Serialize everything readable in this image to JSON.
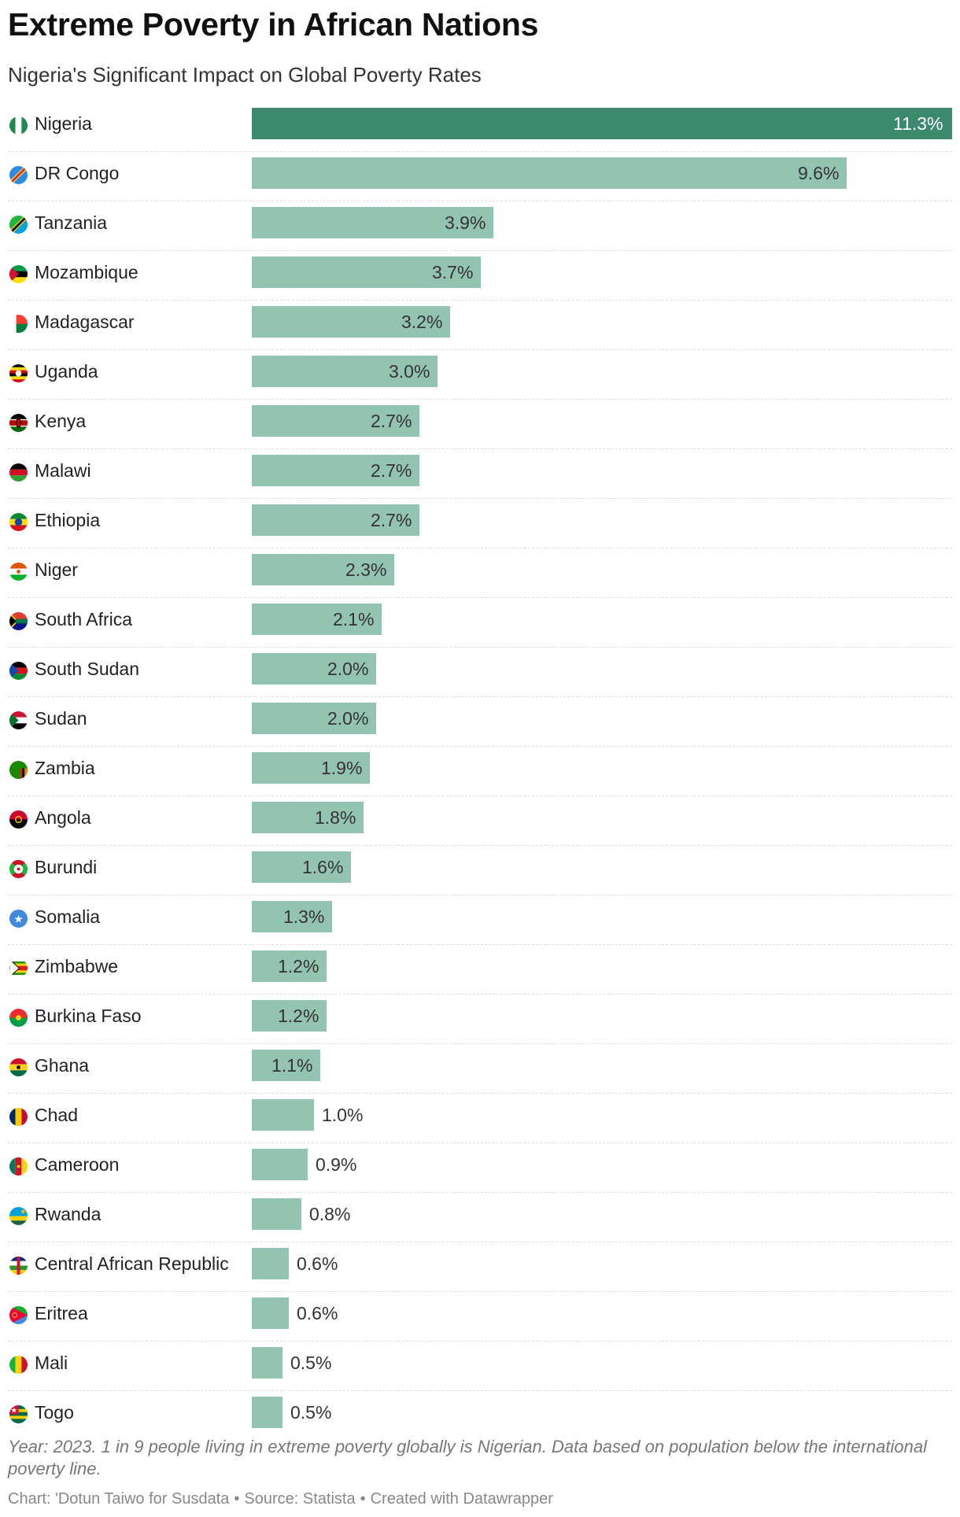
{
  "title": "Extreme Poverty in African Nations",
  "subtitle": "Nigeria's Significant Impact on Global Poverty Rates",
  "notes": "Year: 2023. 1 in 9 people living in extreme poverty globally is Nigerian. Data based on population below the international poverty line.",
  "credits": {
    "chart": "Chart: 'Dotun Taiwo for Susdata",
    "source": "Source: Statista",
    "created": "Created with Datawrapper",
    "separator": "•"
  },
  "colors": {
    "bar": "#93c4b1",
    "highlight": "#3b8a6e"
  },
  "chart_data": {
    "type": "bar",
    "orientation": "horizontal",
    "title": "Extreme Poverty in African Nations",
    "subtitle": "Nigeria's Significant Impact on Global Poverty Rates",
    "xlabel": "",
    "ylabel": "",
    "unit": "%",
    "xlim": [
      0,
      11.3
    ],
    "highlight": "Nigeria",
    "categories": [
      "Nigeria",
      "DR Congo",
      "Tanzania",
      "Mozambique",
      "Madagascar",
      "Uganda",
      "Kenya",
      "Malawi",
      "Ethiopia",
      "Niger",
      "South Africa",
      "South Sudan",
      "Sudan",
      "Zambia",
      "Angola",
      "Burundi",
      "Somalia",
      "Zimbabwe",
      "Burkina Faso",
      "Ghana",
      "Chad",
      "Cameroon",
      "Rwanda",
      "Central African Republic",
      "Eritrea",
      "Mali",
      "Togo"
    ],
    "values": [
      11.3,
      9.6,
      3.9,
      3.7,
      3.2,
      3.0,
      2.7,
      2.7,
      2.7,
      2.3,
      2.1,
      2.0,
      2.0,
      1.9,
      1.8,
      1.6,
      1.3,
      1.2,
      1.2,
      1.1,
      1.0,
      0.9,
      0.8,
      0.6,
      0.6,
      0.5,
      0.5
    ],
    "value_labels": [
      "11.3%",
      "9.6%",
      "3.9%",
      "3.7%",
      "3.2%",
      "3.0%",
      "2.7%",
      "2.7%",
      "2.7%",
      "2.3%",
      "2.1%",
      "2.0%",
      "2.0%",
      "1.9%",
      "1.8%",
      "1.6%",
      "1.3%",
      "1.2%",
      "1.2%",
      "1.1%",
      "1.0%",
      "0.9%",
      "0.8%",
      "0.6%",
      "0.6%",
      "0.5%",
      "0.5%"
    ],
    "flags": [
      "nigeria-flag-icon",
      "dr-congo-flag-icon",
      "tanzania-flag-icon",
      "mozambique-flag-icon",
      "madagascar-flag-icon",
      "uganda-flag-icon",
      "kenya-flag-icon",
      "malawi-flag-icon",
      "ethiopia-flag-icon",
      "niger-flag-icon",
      "south-africa-flag-icon",
      "south-sudan-flag-icon",
      "sudan-flag-icon",
      "zambia-flag-icon",
      "angola-flag-icon",
      "burundi-flag-icon",
      "somalia-flag-icon",
      "zimbabwe-flag-icon",
      "burkina-faso-flag-icon",
      "ghana-flag-icon",
      "chad-flag-icon",
      "cameroon-flag-icon",
      "rwanda-flag-icon",
      "central-african-republic-flag-icon",
      "eritrea-flag-icon",
      "mali-flag-icon",
      "togo-flag-icon"
    ]
  }
}
